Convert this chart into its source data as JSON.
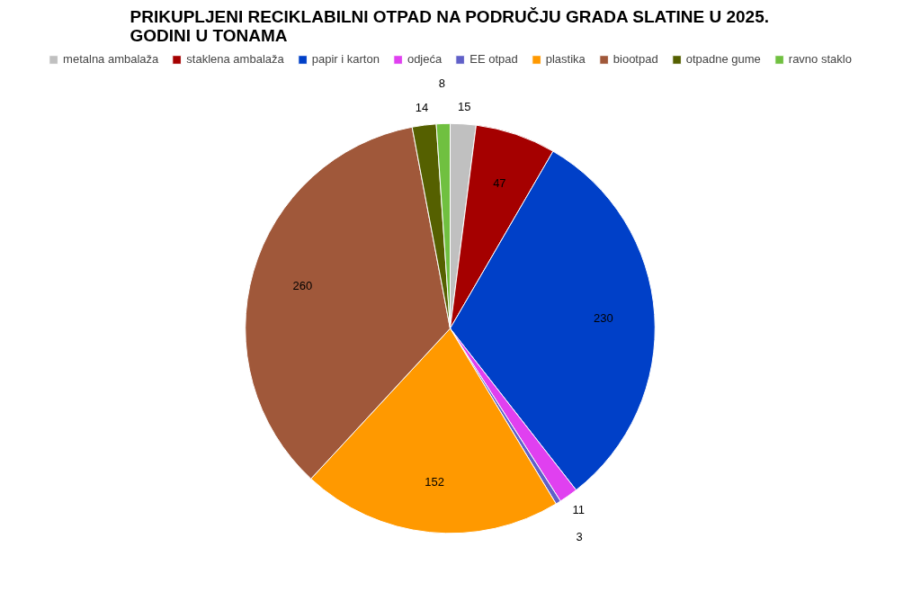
{
  "chart_data": {
    "type": "pie",
    "title": "PRIKUPLJENI RECIKLABILNI OTPAD NA PODRUČJU GRADA SLATINE U 2025. GODINI U TONAMA",
    "categories": [
      "metalna ambalaža",
      "staklena ambalaža",
      "papir i karton",
      "odjeća",
      "EE otpad",
      "plastika",
      "biootpad",
      "otpadne gume",
      "ravno staklo"
    ],
    "values": [
      15,
      47,
      230,
      11,
      3,
      152,
      260,
      14,
      8
    ],
    "colors": [
      "#c0c0c0",
      "#a50000",
      "#0040c8",
      "#e040f0",
      "#6060c8",
      "#ff9900",
      "#a0583a",
      "#556000",
      "#70c040"
    ],
    "data_labels": true,
    "legend": "top"
  }
}
